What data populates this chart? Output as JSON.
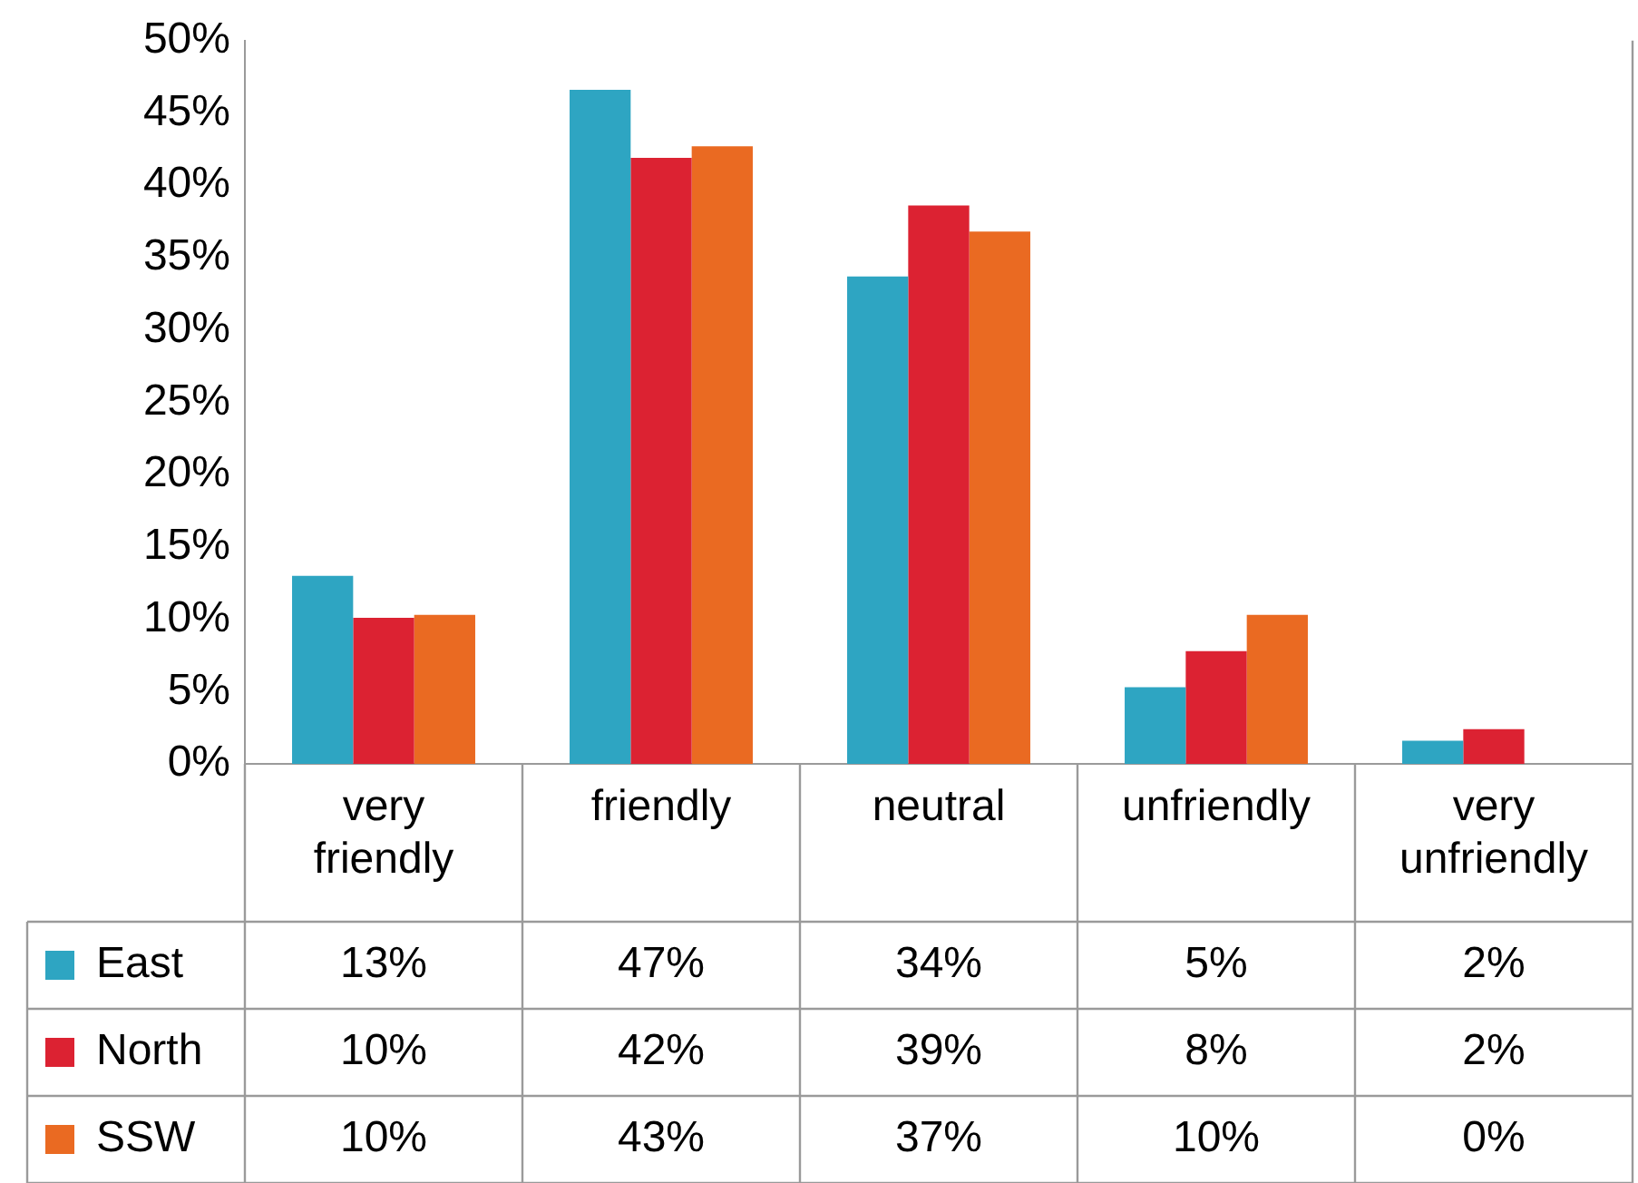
{
  "chart_data": {
    "type": "bar",
    "categories": [
      "very friendly",
      "friendly",
      "neutral",
      "unfriendly",
      "very unfriendly"
    ],
    "series": [
      {
        "name": "East",
        "color": "#2ea5c2",
        "values": [
          13.0,
          46.6,
          33.7,
          5.3,
          1.6
        ],
        "value_labels": [
          "13%",
          "47%",
          "34%",
          "5%",
          "2%"
        ]
      },
      {
        "name": "North",
        "color": "#dc2232",
        "values": [
          10.1,
          41.9,
          38.6,
          7.8,
          2.4
        ],
        "value_labels": [
          "10%",
          "42%",
          "39%",
          "8%",
          "2%"
        ]
      },
      {
        "name": "SSW",
        "color": "#ea6a22",
        "values": [
          10.3,
          42.7,
          36.8,
          10.3,
          0
        ],
        "value_labels": [
          "10%",
          "43%",
          "37%",
          "10%",
          "0%"
        ]
      }
    ],
    "ylim": [
      0,
      50
    ],
    "yticks": [
      {
        "value": 0,
        "label": "0%"
      },
      {
        "value": 5,
        "label": "5%"
      },
      {
        "value": 10,
        "label": "10%"
      },
      {
        "value": 15,
        "label": "15%"
      },
      {
        "value": 20,
        "label": "20%"
      },
      {
        "value": 25,
        "label": "25%"
      },
      {
        "value": 30,
        "label": "30%"
      },
      {
        "value": 35,
        "label": "35%"
      },
      {
        "value": 40,
        "label": "40%"
      },
      {
        "value": 45,
        "label": "45%"
      },
      {
        "value": 50,
        "label": "50%"
      }
    ],
    "grid": false,
    "legend": "bottom left"
  }
}
